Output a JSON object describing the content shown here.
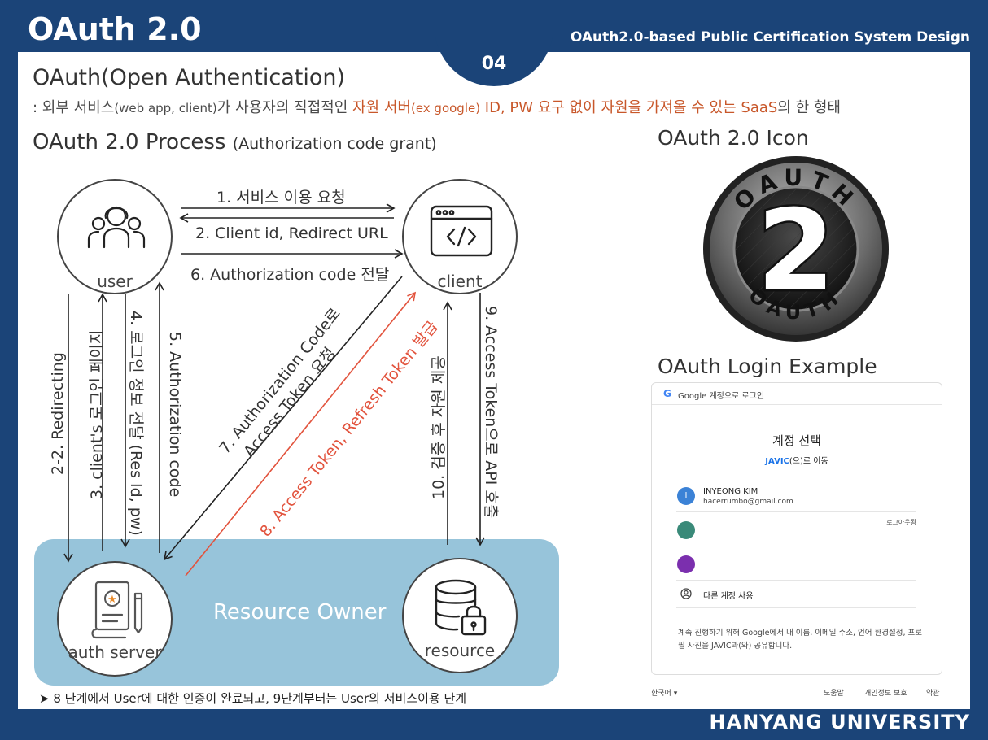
{
  "header": {
    "title": "OAuth 2.0",
    "subtitle": "OAuth2.0-based Public Certification System Design",
    "page_number": "04",
    "university": "HANYANG UNIVERSITY"
  },
  "definition": {
    "heading": "OAuth(Open Authentication)",
    "p1": ": 외부 서비스",
    "p2": "(web app, client)",
    "p3": "가 사용자의 직접적인 ",
    "p4": "자원 서버",
    "p5": "(ex google)",
    "p6": " ID, PW 요구 없이 자원을 가져올 수 있는 SaaS",
    "p7": "의 한 형태",
    "highlight_color": "#c8572a"
  },
  "process": {
    "heading": "OAuth 2.0 Process",
    "subheading": "(Authorization code grant)",
    "nodes": {
      "user": "user",
      "client": "client",
      "auth_server": "auth server",
      "resource": "resource"
    },
    "resource_owner": "Resource Owner",
    "steps": {
      "s1": "1. 서비스 이용 요청",
      "s2": "2. Client id, Redirect URL",
      "s6": "6. Authorization code 전달",
      "s2_2": "2-2. Redirecting",
      "s3": "3. client's 로그인 페이지",
      "s4": "4. 로그인 정보 전달 (Res Id, pw)",
      "s5": "5. Authorization code",
      "s7a": "7. Authorization Code로",
      "s7b": "Access Token 요청",
      "s8": "8. Access Token, Refresh Token 발급",
      "s9": "9. Access Token으로 API 호출",
      "s10": "10. 검증 후 자원 제공"
    },
    "note": "➤ 8 단계에서 User에 대한 인증이 완료되고, 9단계부터는 User의 서비스이용 단계",
    "colors": {
      "band": "#97c4da",
      "step8": "#e2533d"
    }
  },
  "icon_section": {
    "heading": "OAuth 2.0 Icon",
    "logo_top": "OAUTH",
    "logo_bottom": "OAUTH",
    "logo_number": "2"
  },
  "login_section": {
    "heading": "OAuth Login Example",
    "header_text": "Google 계정으로 로그인",
    "title": "계정 선택",
    "app_name": "JAVIC",
    "subtitle_rest": "(으)로 이동",
    "accounts": [
      {
        "initial": "I",
        "name": "INYEONG KIM",
        "email": "hacerrumbo@gmail.com",
        "right": "",
        "color": "#3b82d6"
      },
      {
        "initial": "",
        "name": "",
        "email": "",
        "right": "로그아웃됨",
        "color": "#3a8a79"
      },
      {
        "initial": "",
        "name": "",
        "email": "",
        "right": "",
        "color": "#7b2fae"
      }
    ],
    "other_account": "다른 계정 사용",
    "description": "계속 진행하기 위해 Google에서 내 이름, 이메일 주소, 언어 환경설정, 프로필 사진을 JAVIC과(와) 공유합니다.",
    "footer": {
      "language": "한국어 ▾",
      "help": "도움말",
      "privacy": "개인정보 보호",
      "terms": "약관"
    }
  }
}
